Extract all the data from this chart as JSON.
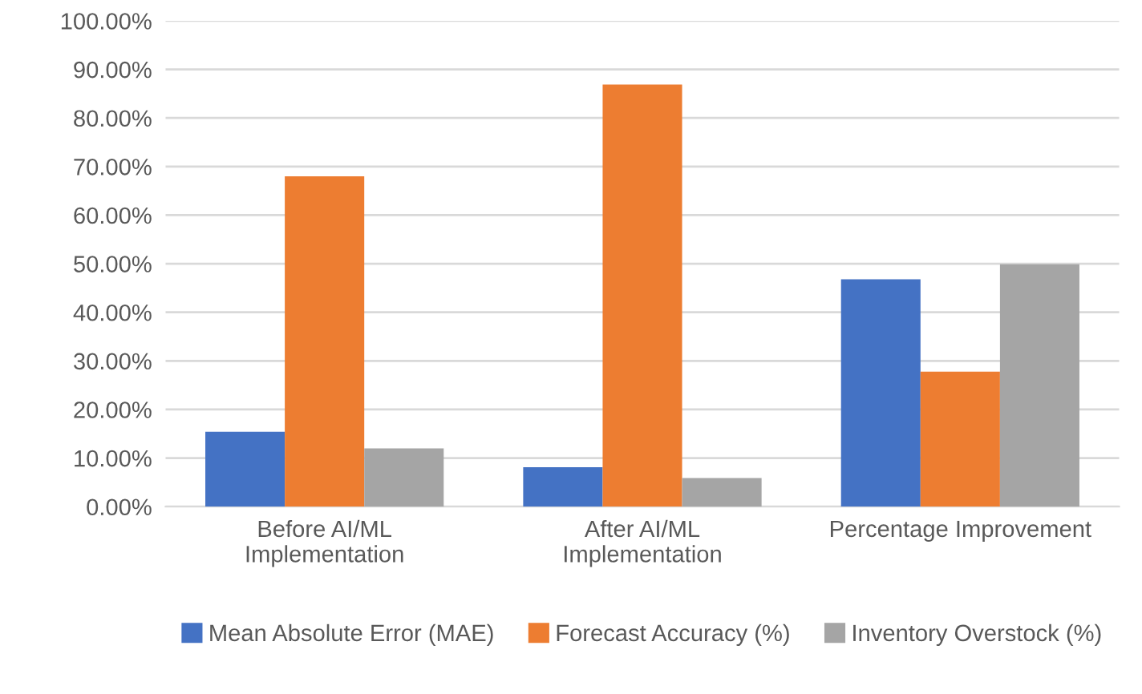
{
  "chart_data": {
    "type": "bar",
    "categories": [
      "Before AI/ML\nImplementation",
      "After AI/ML\nImplementation",
      "Percentage Improvement"
    ],
    "series": [
      {
        "name": "Mean Absolute Error (MAE)",
        "color": "#4472c4",
        "values": [
          15.4,
          8.1,
          46.8
        ]
      },
      {
        "name": "Forecast Accuracy (%)",
        "color": "#ed7d31",
        "values": [
          68.0,
          86.9,
          27.8
        ]
      },
      {
        "name": "Inventory Overstock (%)",
        "color": "#a5a5a5",
        "values": [
          12.0,
          5.9,
          49.9
        ]
      }
    ],
    "ylim": [
      0,
      100
    ],
    "yticks": [
      {
        "value": 0,
        "label": "0.00%"
      },
      {
        "value": 10,
        "label": "10.00%"
      },
      {
        "value": 20,
        "label": "20.00%"
      },
      {
        "value": 30,
        "label": "30.00%"
      },
      {
        "value": 40,
        "label": "40.00%"
      },
      {
        "value": 50,
        "label": "50.00%"
      },
      {
        "value": 60,
        "label": "60.00%"
      },
      {
        "value": 70,
        "label": "70.00%"
      },
      {
        "value": 80,
        "label": "80.00%"
      },
      {
        "value": 90,
        "label": "90.00%"
      },
      {
        "value": 100,
        "label": "100.00%"
      }
    ],
    "grid": "y",
    "legend": "bottom"
  }
}
